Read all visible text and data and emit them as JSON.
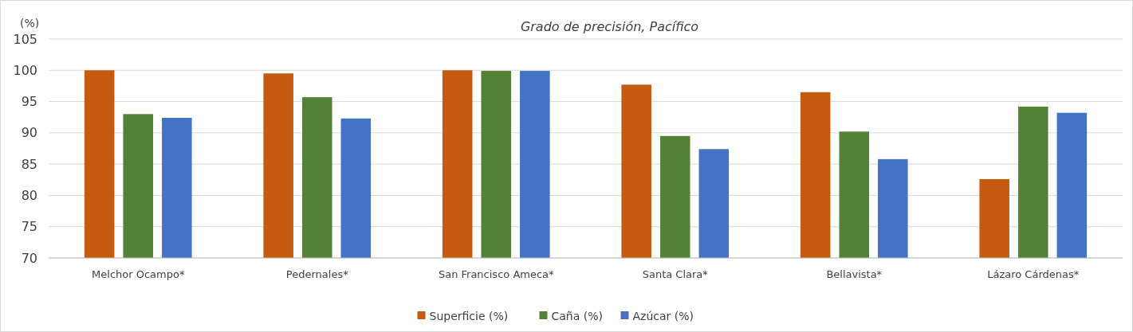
{
  "chart_data": {
    "type": "bar",
    "title": "Grado de precisión, Pacífico",
    "ylabel": "(%)",
    "categories": [
      "Melchor Ocampo*",
      "Pedernales*",
      "San Francisco Ameca*",
      "Santa Clara*",
      "Bellavista*",
      "Lázaro Cárdenas*"
    ],
    "series": [
      {
        "name": "Superficie (%)",
        "color": "#c55a11",
        "values": [
          100,
          99.5,
          100,
          97.7,
          96.5,
          82.6
        ]
      },
      {
        "name": "Caña (%)",
        "color": "#538135",
        "values": [
          93,
          95.7,
          99.9,
          89.5,
          90.2,
          94.2
        ]
      },
      {
        "name": "Azúcar (%)",
        "color": "#4472c4",
        "values": [
          92.4,
          92.3,
          99.9,
          87.4,
          85.8,
          93.2
        ]
      }
    ],
    "ylim": [
      70,
      105
    ],
    "yticks": [
      70,
      75,
      80,
      85,
      90,
      95,
      100,
      105
    ],
    "grid": "y",
    "legend": "bottom"
  }
}
